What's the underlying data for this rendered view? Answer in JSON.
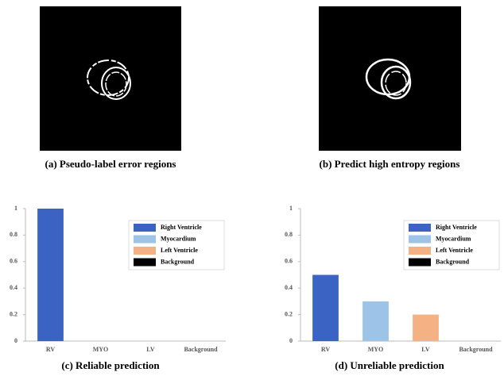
{
  "panels": [
    {
      "caption": "(a) Pseudo-label error regions"
    },
    {
      "caption": "(b) Predict high entropy regions"
    }
  ],
  "chart_data": [
    {
      "type": "bar",
      "caption": "(c) Reliable prediction",
      "categories": [
        "RV",
        "MYO",
        "LV",
        "Background"
      ],
      "values": [
        1,
        0,
        0,
        0
      ],
      "colors": [
        "#3b63c4",
        "#9dc3e6",
        "#f4b183",
        "#000000"
      ],
      "legend": [
        "Right Ventricle",
        "Myocardium",
        "Left Ventricle",
        "Background"
      ],
      "ylim": [
        0,
        1
      ],
      "yticks": [
        0,
        0.2,
        0.4,
        0.6,
        0.8,
        1
      ],
      "legend_position": "upper right"
    },
    {
      "type": "bar",
      "caption": "(d) Unreliable prediction",
      "categories": [
        "RV",
        "MYO",
        "LV",
        "Background"
      ],
      "values": [
        0.5,
        0.3,
        0.2,
        0
      ],
      "colors": [
        "#3b63c4",
        "#9dc3e6",
        "#f4b183",
        "#000000"
      ],
      "legend": [
        "Right Ventricle",
        "Myocardium",
        "Left Ventricle",
        "Background"
      ],
      "ylim": [
        0,
        1
      ],
      "yticks": [
        0,
        0.2,
        0.4,
        0.6,
        0.8,
        1
      ],
      "legend_position": "upper right"
    }
  ]
}
